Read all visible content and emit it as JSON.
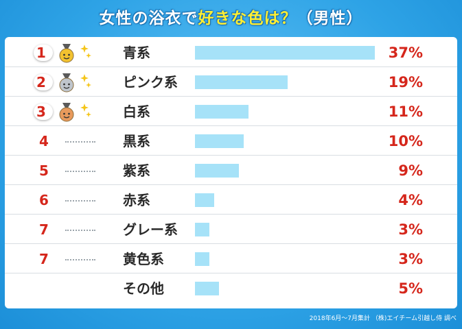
{
  "title": {
    "part1": "女性の浴衣で",
    "part2": "好きな色は？",
    "part3": "（男性）"
  },
  "colors": {
    "rank_red": "#d5261b",
    "bar_blue": "#a6e2f8",
    "gold": "#f2c230",
    "silver": "#bfc5cc",
    "bronze": "#e89a5c",
    "background": "#2ea3e6"
  },
  "chart_data": {
    "type": "bar",
    "orientation": "horizontal",
    "categories": [
      "青系",
      "ピンク系",
      "白系",
      "黒系",
      "紫系",
      "赤系",
      "グレー系",
      "黄色系",
      "その他"
    ],
    "ranks": [
      "1",
      "2",
      "3",
      "4",
      "5",
      "6",
      "7",
      "7",
      ""
    ],
    "values": [
      37,
      19,
      11,
      10,
      9,
      4,
      3,
      3,
      5
    ],
    "value_labels": [
      "37%",
      "19%",
      "11%",
      "10%",
      "9%",
      "4%",
      "3%",
      "3%",
      "5%"
    ],
    "medals": [
      "gold-medal-icon",
      "silver-medal-icon",
      "bronze-medal-icon"
    ],
    "xlim": [
      0,
      37
    ]
  },
  "footnote": "2018年6月〜7月集計 （株)エイチーム引越し侍 調べ"
}
